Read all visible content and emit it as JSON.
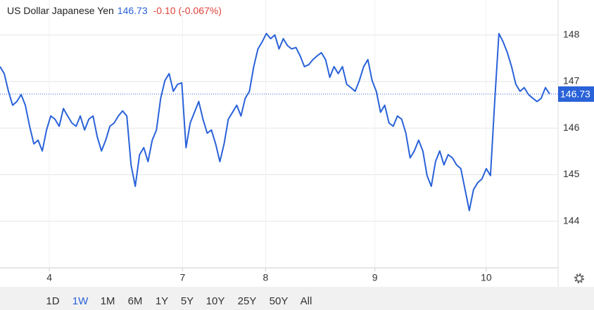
{
  "chart_data": {
    "type": "line",
    "title": "US Dollar Japanese Yen",
    "price": 146.73,
    "change": "-0.10 (-0.067%)",
    "series": [
      {
        "name": "US Dollar Japanese Yen",
        "color": "#2962d9",
        "values": [
          147.32,
          147.17,
          146.79,
          146.49,
          146.57,
          146.72,
          146.49,
          146.04,
          145.66,
          145.74,
          145.51,
          145.96,
          146.26,
          146.19,
          146.04,
          146.42,
          146.26,
          146.11,
          146.04,
          146.26,
          145.96,
          146.19,
          146.26,
          145.81,
          145.51,
          145.74,
          146.04,
          146.11,
          146.26,
          146.37,
          146.26,
          145.21,
          144.75,
          145.43,
          145.58,
          145.28,
          145.74,
          145.96,
          146.64,
          147.02,
          147.17,
          146.79,
          146.94,
          146.97,
          145.58,
          146.11,
          146.34,
          146.57,
          146.19,
          145.89,
          145.96,
          145.66,
          145.28,
          145.66,
          146.19,
          146.34,
          146.49,
          146.26,
          146.64,
          146.79,
          147.32,
          147.7,
          147.85,
          148.03,
          147.92,
          148.0,
          147.7,
          147.92,
          147.77,
          147.7,
          147.73,
          147.55,
          147.32,
          147.36,
          147.47,
          147.55,
          147.62,
          147.47,
          147.09,
          147.32,
          147.17,
          147.32,
          146.94,
          146.87,
          146.79,
          147.02,
          147.32,
          147.47,
          147.02,
          146.79,
          146.34,
          146.49,
          146.11,
          146.04,
          146.26,
          146.19,
          145.89,
          145.36,
          145.51,
          145.74,
          145.51,
          144.98,
          144.75,
          145.28,
          145.51,
          145.21,
          145.43,
          145.36,
          145.21,
          145.13,
          144.68,
          144.23,
          144.68,
          144.83,
          144.91,
          145.13,
          144.98,
          146.57,
          148.03,
          147.85,
          147.62,
          147.32,
          146.94,
          146.79,
          146.87,
          146.72,
          146.64,
          146.57,
          146.64,
          146.87,
          146.73
        ]
      }
    ],
    "ylim": [
      143,
      148.75
    ],
    "yticks": [
      144,
      145,
      146,
      147,
      148
    ],
    "xlim": [
      0,
      132
    ],
    "xticks": [
      {
        "value": 11.67,
        "label": "4"
      },
      {
        "value": 43.17,
        "label": "7"
      },
      {
        "value": 62.83,
        "label": "8"
      },
      {
        "value": 88.67,
        "label": "9"
      },
      {
        "value": 115,
        "label": "10"
      }
    ],
    "grid": true
  },
  "range_buttons": [
    "1D",
    "1W",
    "1M",
    "6M",
    "1Y",
    "5Y",
    "10Y",
    "25Y",
    "50Y",
    "All"
  ],
  "selected_range": "1W"
}
